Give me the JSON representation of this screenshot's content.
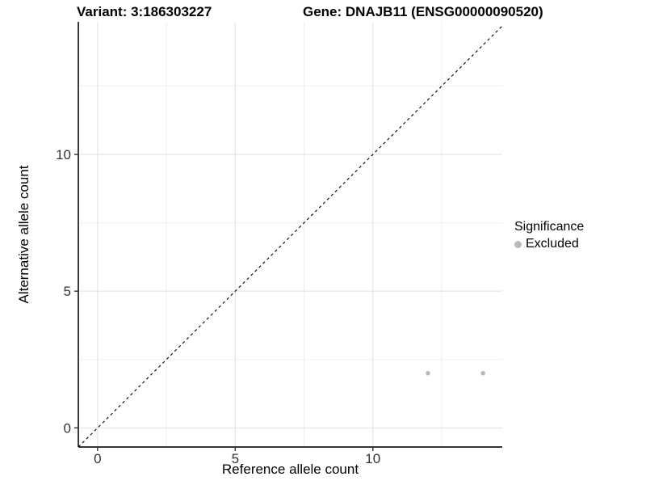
{
  "titles": {
    "variant": "Variant: 3:186303227",
    "gene": "Gene: DNAJB11 (ENSG00000090520)"
  },
  "legend": {
    "title": "Significance",
    "items": [
      {
        "label": "Excluded",
        "color": "#b9b9b9"
      }
    ]
  },
  "chart_data": {
    "type": "scatter",
    "xlabel": "Reference allele count",
    "ylabel": "Alternative allele count",
    "xlim": [
      -0.7,
      14.7
    ],
    "ylim": [
      -0.7,
      14.85
    ],
    "x_ticks": [
      0,
      5,
      10
    ],
    "y_ticks": [
      0,
      5,
      10
    ],
    "x_minor_breaks": [
      2.5,
      7.5,
      12.5
    ],
    "y_minor_breaks": [
      2.5,
      7.5,
      12.5
    ],
    "grid": true,
    "legend_position": "right",
    "series": [
      {
        "name": "Excluded",
        "color": "#b9b9b9",
        "points": [
          {
            "x": 12,
            "y": 2
          },
          {
            "x": 14,
            "y": 2
          }
        ]
      }
    ],
    "reference_line": {
      "description": "identity line y = x",
      "from": [
        -0.7,
        -0.7
      ],
      "to": [
        14.7,
        14.7
      ],
      "style": "dashed",
      "color": "#000000"
    },
    "colors": {
      "grid_major": "#e4e4e4",
      "grid_minor": "#f0f0f0",
      "axis_line": "#1a1a1a",
      "tick_mark": "#333333",
      "tick_label": "#333333",
      "point": "#b9b9b9"
    }
  }
}
